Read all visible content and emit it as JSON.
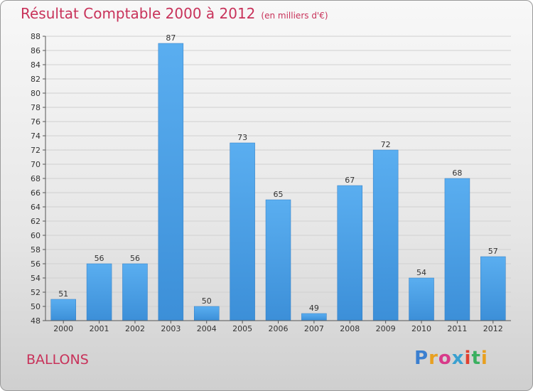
{
  "title": "Résultat Comptable 2000 à 2012",
  "subtitle": "(en milliers d'€)",
  "commune": "BALLONS",
  "logo": [
    "P",
    "r",
    "o",
    "x",
    "i",
    "t",
    "i"
  ],
  "colors": {
    "bar": "#3c8fd8",
    "barLight": "#5aaef0",
    "title": "#c8325a"
  },
  "chart_data": {
    "type": "bar",
    "title": "Résultat Comptable 2000 à 2012",
    "ylabel": "en milliers d'€",
    "categories": [
      "2000",
      "2001",
      "2002",
      "2003",
      "2004",
      "2005",
      "2006",
      "2007",
      "2008",
      "2009",
      "2010",
      "2011",
      "2012"
    ],
    "values": [
      51,
      56,
      56,
      87,
      50,
      73,
      65,
      49,
      67,
      72,
      54,
      68,
      57
    ],
    "ylim": [
      48,
      88
    ],
    "yticks": [
      "48",
      "50",
      "52",
      "54",
      "56",
      "58",
      "60",
      "62",
      "64",
      "66",
      "68",
      "70",
      "72",
      "74",
      "76",
      "78",
      "80",
      "82",
      "84",
      "86",
      "88"
    ],
    "grid": true
  }
}
